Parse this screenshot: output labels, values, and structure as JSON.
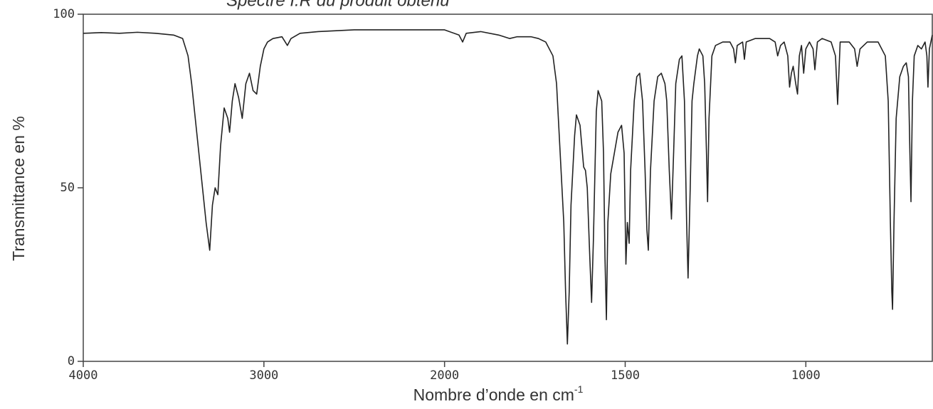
{
  "chart_data": {
    "type": "line",
    "title": "Spectre I.R du produit obtenu",
    "xlabel": "Nombre d’onde en cm",
    "xlabel_sup": "-1",
    "ylabel": "Transmittance en %",
    "xlim": [
      4000,
      650
    ],
    "ylim": [
      0,
      100
    ],
    "x_scale_doubles_below": 2000,
    "xticks": [
      4000,
      3000,
      2000,
      1500,
      1000
    ],
    "yticks": [
      0,
      50,
      100
    ],
    "x": [
      4000,
      3900,
      3800,
      3700,
      3600,
      3500,
      3450,
      3420,
      3400,
      3380,
      3360,
      3340,
      3320,
      3300,
      3285,
      3270,
      3255,
      3240,
      3220,
      3200,
      3190,
      3175,
      3160,
      3140,
      3120,
      3100,
      3080,
      3060,
      3040,
      3020,
      3000,
      2980,
      2950,
      2900,
      2870,
      2850,
      2800,
      2700,
      2500,
      2200,
      2000,
      1960,
      1950,
      1940,
      1900,
      1850,
      1820,
      1800,
      1760,
      1740,
      1720,
      1700,
      1690,
      1680,
      1670,
      1665,
      1660,
      1655,
      1650,
      1640,
      1635,
      1625,
      1615,
      1610,
      1605,
      1598,
      1593,
      1588,
      1580,
      1575,
      1565,
      1560,
      1556,
      1552,
      1548,
      1540,
      1530,
      1520,
      1510,
      1503,
      1498,
      1494,
      1489,
      1485,
      1475,
      1468,
      1460,
      1452,
      1445,
      1440,
      1436,
      1430,
      1420,
      1410,
      1400,
      1390,
      1385,
      1378,
      1372,
      1366,
      1360,
      1350,
      1343,
      1336,
      1330,
      1326,
      1320,
      1315,
      1310,
      1300,
      1295,
      1285,
      1280,
      1275,
      1272,
      1268,
      1260,
      1250,
      1230,
      1210,
      1200,
      1195,
      1190,
      1175,
      1170,
      1165,
      1140,
      1100,
      1085,
      1078,
      1070,
      1060,
      1050,
      1045,
      1040,
      1035,
      1028,
      1023,
      1018,
      1012,
      1006,
      1000,
      990,
      980,
      975,
      968,
      955,
      930,
      918,
      912,
      905,
      880,
      865,
      858,
      850,
      830,
      800,
      780,
      772,
      766,
      762,
      760,
      756,
      750,
      740,
      730,
      722,
      716,
      712,
      709,
      705,
      700,
      690,
      680,
      670,
      665,
      662,
      658,
      650
    ],
    "series": [
      {
        "name": "Transmittance",
        "color": "#222222",
        "values": [
          94.5,
          94.7,
          94.5,
          94.8,
          94.5,
          94,
          93,
          88,
          80,
          70,
          60,
          50,
          40,
          32,
          45,
          50,
          48,
          62,
          73,
          70,
          66,
          75,
          80,
          76,
          70,
          80,
          83,
          78,
          77,
          85,
          90,
          92,
          93,
          93.5,
          91,
          93,
          94.5,
          95,
          95.5,
          95.5,
          95.5,
          94,
          92,
          94.5,
          95,
          94,
          93,
          93.5,
          93.5,
          93,
          92,
          88,
          80,
          60,
          40,
          20,
          5,
          20,
          45,
          65,
          71,
          68,
          56,
          55,
          50,
          30,
          17,
          35,
          72,
          78,
          75,
          60,
          30,
          12,
          40,
          54,
          60,
          66,
          68,
          60,
          28,
          40,
          34,
          55,
          75,
          82,
          83,
          75,
          55,
          38,
          32,
          55,
          75,
          82,
          83,
          80,
          75,
          55,
          41,
          60,
          80,
          87,
          88,
          75,
          40,
          24,
          50,
          75,
          80,
          88,
          90,
          88,
          80,
          60,
          46,
          70,
          88,
          91,
          92,
          92,
          90,
          86,
          91,
          92,
          87,
          92,
          93,
          93,
          92,
          88,
          91,
          92,
          88,
          79,
          83,
          85,
          80,
          77,
          88,
          91,
          83,
          90,
          92,
          90,
          84,
          92,
          93,
          92,
          88,
          74,
          92,
          92,
          90,
          85,
          90,
          92,
          92,
          88,
          75,
          40,
          20,
          15,
          40,
          70,
          82,
          85,
          86,
          82,
          60,
          46,
          75,
          88,
          91,
          90,
          92,
          88,
          79,
          90,
          94
        ]
      }
    ]
  }
}
